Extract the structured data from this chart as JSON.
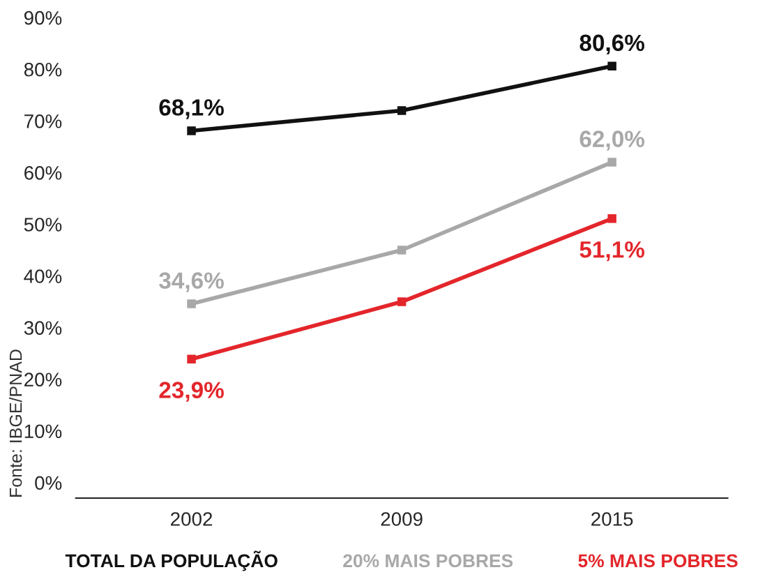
{
  "chart_data": {
    "type": "line",
    "categories": [
      "2002",
      "2009",
      "2015"
    ],
    "series": [
      {
        "name": "TOTAL DA POPULAÇÃO",
        "color": "#111111",
        "values": [
          68.1,
          72,
          80.6
        ],
        "value_labels": [
          "68,1%",
          null,
          "80,6%"
        ]
      },
      {
        "name": "20% MAIS POBRES",
        "color": "#a8a8a8",
        "values": [
          34.6,
          45,
          62.0
        ],
        "value_labels": [
          "34,6%",
          null,
          "62,0%"
        ]
      },
      {
        "name": "5% MAIS POBRES",
        "color": "#e3262b",
        "values": [
          23.9,
          35,
          51.1
        ],
        "value_labels": [
          "23,9%",
          null,
          "51,1%"
        ]
      }
    ],
    "ylim": [
      -3,
      90
    ],
    "yticks": [
      {
        "value": 0,
        "label": "0%"
      },
      {
        "value": 10,
        "label": "10%"
      },
      {
        "value": 20,
        "label": "20%"
      },
      {
        "value": 30,
        "label": "30%"
      },
      {
        "value": 40,
        "label": "40%"
      },
      {
        "value": 50,
        "label": "50%"
      },
      {
        "value": 60,
        "label": "60%"
      },
      {
        "value": 70,
        "label": "70%"
      },
      {
        "value": 80,
        "label": "80%"
      },
      {
        "value": 90,
        "label": "90%"
      }
    ],
    "marker": "square",
    "line_style": "solid",
    "grid": false,
    "legend": "bottom",
    "annotations": [
      "Fonte: IBGE/PNAD"
    ]
  }
}
